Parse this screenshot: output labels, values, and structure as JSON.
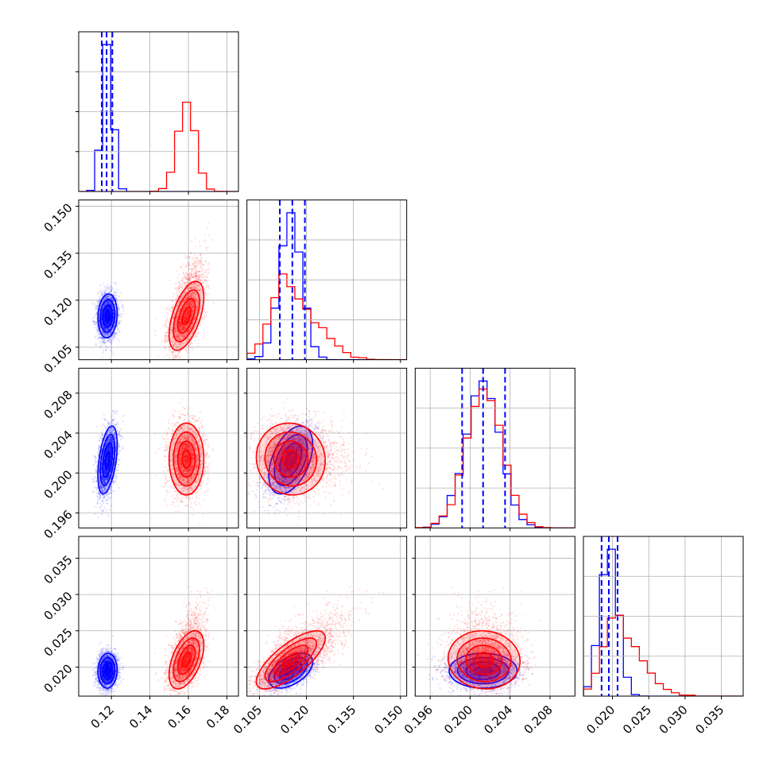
{
  "chart_data": {
    "type": "corner",
    "title": "",
    "grid": true,
    "colors": {
      "blue": "#0000ff",
      "red": "#ff0000",
      "frame": "#000000",
      "grid": "#b0b0b0"
    },
    "parameters": [
      {
        "id": "p0",
        "range": [
          0.103,
          0.186
        ],
        "ticks": [
          "0.12",
          "0.14",
          "0.16",
          "0.18"
        ],
        "tick_values": [
          0.12,
          0.14,
          0.16,
          0.18
        ],
        "label": ""
      },
      {
        "id": "p1",
        "range": [
          0.101,
          0.152
        ],
        "ticks": [
          "0.105",
          "0.120",
          "0.135",
          "0.150"
        ],
        "tick_values": [
          0.105,
          0.12,
          0.135,
          0.15
        ],
        "label": ""
      },
      {
        "id": "p2",
        "range": [
          0.1945,
          0.2105
        ],
        "ticks": [
          "0.196",
          "0.200",
          "0.204",
          "0.208"
        ],
        "tick_values": [
          0.196,
          0.2,
          0.204,
          0.208
        ],
        "label": ""
      },
      {
        "id": "p3",
        "range": [
          0.016,
          0.038
        ],
        "ticks": [
          "0.020",
          "0.025",
          "0.030",
          "0.035"
        ],
        "tick_values": [
          0.02,
          0.025,
          0.03,
          0.035
        ],
        "label": ""
      }
    ],
    "series": [
      {
        "color": "blue",
        "mean": [
          0.118,
          0.115,
          0.2013,
          0.0195
        ],
        "sd": [
          0.0025,
          0.0035,
          0.0017,
          0.0012
        ],
        "corr": [
          [
            0,
            1,
            0.1
          ],
          [
            0,
            2,
            0.45
          ],
          [
            0,
            3,
            0.05
          ],
          [
            1,
            2,
            0.45
          ],
          [
            1,
            3,
            0.5
          ],
          [
            2,
            3,
            0.0
          ]
        ],
        "quantiles": [
          [
            0.115,
            0.1175,
            0.1205
          ],
          [
            0.1115,
            0.1155,
            0.1195
          ],
          [
            0.1992,
            0.2013,
            0.2035
          ],
          [
            0.0185,
            0.0195,
            0.0207
          ]
        ]
      },
      {
        "color": "red",
        "mean": [
          0.159,
          0.115,
          0.2014,
          0.021
        ],
        "sd": [
          0.0045,
          0.0055,
          0.0018,
          0.002
        ],
        "corr": [
          [
            0,
            1,
            0.55
          ],
          [
            0,
            2,
            0.0
          ],
          [
            0,
            3,
            0.5
          ],
          [
            1,
            2,
            -0.05
          ],
          [
            1,
            3,
            0.75
          ],
          [
            2,
            3,
            -0.05
          ]
        ],
        "quantiles": []
      }
    ]
  }
}
